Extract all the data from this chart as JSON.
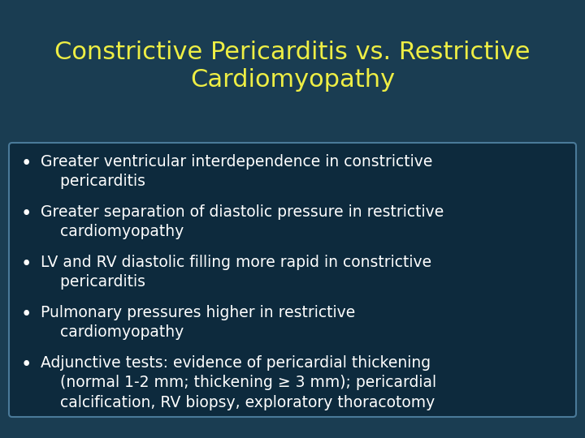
{
  "title_line1": "Constrictive Pericarditis vs. Restrictive",
  "title_line2": "Cardiomyopathy",
  "title_color": "#EEEE44",
  "title_fontsize": 22,
  "background_color": "#1a3d52",
  "box_color": "#0d2a3d",
  "box_border_color": "#4a7a99",
  "bullet_color": "#ffffff",
  "bullet_fontsize": 13.5,
  "bullets": [
    "Greater ventricular interdependence in constrictive\n    pericarditis",
    "Greater separation of diastolic pressure in restrictive\n    cardiomyopathy",
    "LV and RV diastolic filling more rapid in constrictive\n    pericarditis",
    "Pulmonary pressures higher in restrictive\n    cardiomyopathy",
    "Adjunctive tests: evidence of pericardial thickening\n    (normal 1-2 mm; thickening ≥ 3 mm); pericardial\n    calcification, RV biopsy, exploratory thoracotomy"
  ]
}
